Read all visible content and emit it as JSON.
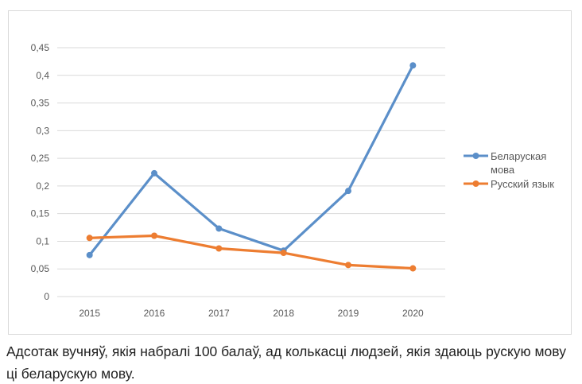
{
  "chart_data": {
    "type": "line",
    "title": "",
    "xlabel": "",
    "ylabel": "",
    "categories": [
      "2015",
      "2016",
      "2017",
      "2018",
      "2019",
      "2020"
    ],
    "y_ticks": [
      "0",
      "0,05",
      "0,1",
      "0,15",
      "0,2",
      "0,25",
      "0,3",
      "0,35",
      "0,4",
      "0,45"
    ],
    "ylim": [
      0,
      0.45
    ],
    "grid": true,
    "legend_position": "right",
    "series": [
      {
        "name": "Беларуская мова",
        "legend_lines": [
          "Беларуская",
          "мова"
        ],
        "color": "#5b8fc9",
        "values": [
          0.075,
          0.223,
          0.123,
          0.083,
          0.191,
          0.418
        ]
      },
      {
        "name": "Русский язык",
        "legend_lines": [
          "Русский язык"
        ],
        "color": "#ed7d31",
        "values": [
          0.106,
          0.11,
          0.087,
          0.079,
          0.057,
          0.051
        ]
      }
    ]
  },
  "caption": "Адсотак вучняў, якія набралі 100 балаў, ад колькасці людзей, якія здаюць рускую мову ці беларускую мову."
}
